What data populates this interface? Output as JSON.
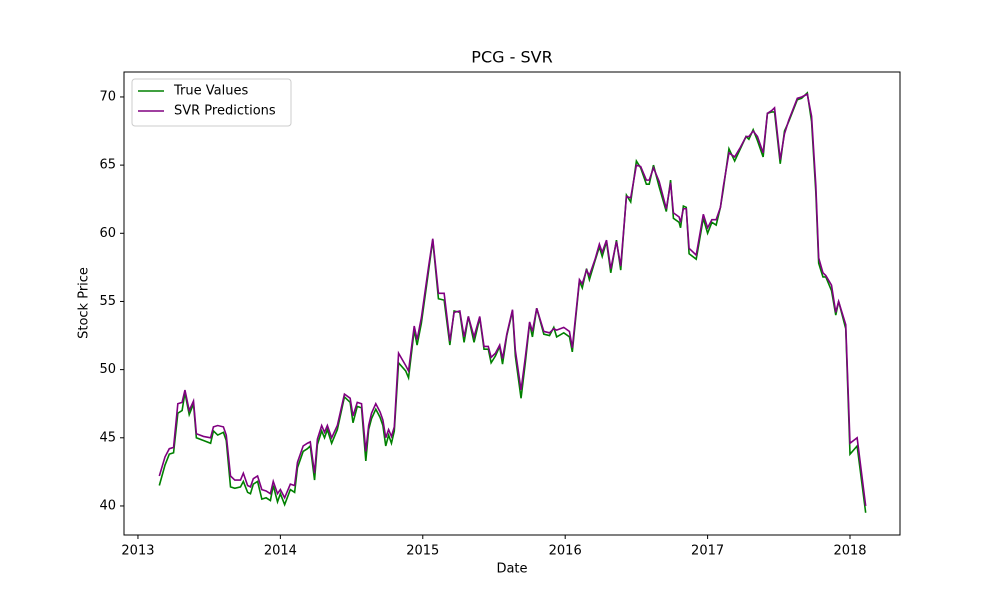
{
  "chart_data": {
    "type": "line",
    "title": "PCG - SVR",
    "xlabel": "Date",
    "ylabel": "Stock Price",
    "legend": "upper left",
    "xlim": [
      2012.902,
      2018.351
    ],
    "xticks": [
      2013,
      2014,
      2015,
      2016,
      2017,
      2018
    ],
    "ylim": [
      37.87,
      71.83
    ],
    "yticks": [
      40,
      45,
      50,
      55,
      60,
      65,
      70
    ],
    "x": [
      2013.15,
      2013.19,
      2013.22,
      2013.25,
      2013.28,
      2013.31,
      2013.33,
      2013.36,
      2013.39,
      2013.41,
      2013.46,
      2013.51,
      2013.53,
      2013.56,
      2013.6,
      2013.62,
      2013.65,
      2013.68,
      2013.72,
      2013.74,
      2013.77,
      2013.79,
      2013.81,
      2013.84,
      2013.87,
      2013.9,
      2013.93,
      2013.95,
      2013.98,
      2014.0,
      2014.03,
      2014.07,
      2014.1,
      2014.12,
      2014.16,
      2014.19,
      2014.21,
      2014.24,
      2014.26,
      2014.29,
      2014.31,
      2014.33,
      2014.36,
      2014.4,
      2014.45,
      2014.49,
      2014.51,
      2014.54,
      2014.57,
      2014.6,
      2014.62,
      2014.64,
      2014.67,
      2014.7,
      2014.72,
      2014.74,
      2014.76,
      2014.78,
      2014.8,
      2014.83,
      2014.88,
      2014.9,
      2014.94,
      2014.96,
      2014.99,
      2015.04,
      2015.07,
      2015.11,
      2015.15,
      2015.19,
      2015.22,
      2015.26,
      2015.29,
      2015.32,
      2015.36,
      2015.4,
      2015.43,
      2015.46,
      2015.48,
      2015.51,
      2015.54,
      2015.56,
      2015.59,
      2015.63,
      2015.65,
      2015.69,
      2015.72,
      2015.75,
      2015.77,
      2015.8,
      2015.85,
      2015.89,
      2015.92,
      2015.94,
      2015.99,
      2016.03,
      2016.05,
      2016.1,
      2016.12,
      2016.15,
      2016.17,
      2016.21,
      2016.24,
      2016.26,
      2016.29,
      2016.32,
      2016.36,
      2016.39,
      2016.43,
      2016.46,
      2016.5,
      2016.53,
      2016.57,
      2016.59,
      2016.62,
      2016.66,
      2016.71,
      2016.74,
      2016.76,
      2016.8,
      2016.81,
      2016.83,
      2016.85,
      2016.87,
      2016.92,
      2016.97,
      2017.0,
      2017.03,
      2017.06,
      2017.09,
      2017.11,
      2017.15,
      2017.19,
      2017.23,
      2017.27,
      2017.29,
      2017.32,
      2017.35,
      2017.39,
      2017.42,
      2017.45,
      2017.47,
      2017.51,
      2017.54,
      2017.57,
      2017.63,
      2017.66,
      2017.7,
      2017.73,
      2017.76,
      2017.78,
      2017.81,
      2017.83,
      2017.87,
      2017.9,
      2017.92,
      2017.97,
      2018.0,
      2018.05,
      2018.11
    ],
    "series": [
      {
        "name": "True Values",
        "color": "#008000",
        "values": [
          41.5,
          43,
          43.8,
          43.9,
          46.8,
          47.0,
          48.3,
          46.7,
          47.5,
          45.0,
          44.8,
          44.6,
          45.5,
          45.2,
          45.4,
          44.8,
          41.4,
          41.3,
          41.4,
          41.8,
          41.0,
          40.9,
          41.6,
          41.8,
          40.5,
          40.6,
          40.4,
          41.5,
          40.3,
          40.9,
          40.1,
          41.2,
          41.0,
          42.8,
          44.0,
          44.2,
          44.4,
          41.9,
          44.5,
          45.5,
          45.0,
          45.6,
          44.6,
          45.6,
          48.0,
          47.6,
          46.1,
          47.3,
          47.2,
          43.3,
          45.6,
          46.4,
          47.1,
          46.5,
          45.9,
          44.4,
          45.2,
          44.6,
          45.5,
          50.5,
          49.9,
          49.4,
          52.9,
          51.8,
          53.4,
          57.2,
          59.5,
          55.2,
          55.1,
          51.8,
          54.3,
          54.2,
          52.0,
          53.9,
          52.0,
          53.8,
          51.5,
          51.5,
          50.5,
          51.0,
          51.7,
          50.4,
          52.5,
          54.3,
          51.0,
          47.9,
          50.5,
          53.4,
          52.4,
          54.5,
          52.6,
          52.5,
          53.1,
          52.4,
          52.7,
          52.4,
          51.3,
          56.5,
          56.0,
          57.4,
          56.6,
          58.0,
          59.0,
          58.3,
          59.4,
          57.1,
          59.5,
          57.3,
          62.8,
          62.3,
          65.3,
          64.8,
          63.6,
          63.6,
          65.0,
          63.4,
          61.6,
          63.9,
          61.1,
          60.8,
          60.4,
          62.0,
          61.9,
          58.5,
          58.1,
          61.1,
          60.0,
          60.8,
          60.6,
          61.9,
          63.2,
          66.2,
          65.3,
          66.2,
          67.1,
          66.9,
          67.6,
          66.8,
          65.6,
          68.8,
          68.9,
          68.9,
          65.1,
          67.5,
          68.2,
          69.8,
          69.9,
          70.3,
          68.2,
          63.0,
          57.8,
          56.8,
          56.8,
          55.8,
          54.0,
          55.0,
          53.0,
          43.8,
          44.4,
          39.5
        ]
      },
      {
        "name": "SVR Predictions",
        "color": "#800080",
        "values": [
          42.2,
          43.6,
          44.2,
          44.3,
          47.5,
          47.6,
          48.5,
          47.0,
          47.7,
          45.3,
          45.1,
          45.0,
          45.8,
          45.9,
          45.8,
          45.2,
          42.2,
          41.9,
          41.9,
          42.4,
          41.5,
          41.4,
          42.0,
          42.2,
          41.2,
          41.1,
          40.9,
          41.8,
          40.9,
          41.2,
          40.6,
          41.6,
          41.5,
          43.2,
          44.4,
          44.6,
          44.7,
          42.4,
          44.9,
          45.9,
          45.4,
          45.9,
          45.0,
          45.9,
          48.2,
          47.9,
          46.6,
          47.6,
          47.5,
          44.0,
          45.9,
          46.8,
          47.5,
          46.9,
          46.3,
          45.0,
          45.6,
          45.1,
          45.8,
          51.2,
          50.3,
          49.9,
          53.2,
          52.2,
          53.8,
          57.5,
          59.6,
          55.6,
          55.6,
          52.1,
          54.2,
          54.3,
          52.4,
          53.9,
          52.4,
          53.9,
          51.7,
          51.7,
          50.9,
          51.2,
          51.8,
          50.8,
          52.6,
          54.4,
          51.4,
          48.5,
          50.9,
          53.5,
          52.8,
          54.5,
          52.8,
          52.7,
          53.0,
          52.9,
          53.1,
          52.8,
          51.6,
          56.6,
          56.3,
          57.3,
          56.9,
          58.1,
          59.2,
          58.6,
          59.5,
          57.4,
          59.4,
          57.6,
          62.7,
          62.6,
          65.0,
          64.9,
          63.9,
          63.9,
          64.8,
          63.8,
          61.8,
          63.7,
          61.5,
          61.2,
          60.8,
          61.8,
          61.8,
          58.9,
          58.4,
          61.4,
          60.4,
          61.0,
          61.0,
          61.9,
          63.4,
          65.9,
          65.6,
          66.3,
          67.1,
          67.1,
          67.5,
          67.1,
          65.9,
          68.8,
          69.0,
          69.2,
          65.4,
          67.3,
          68.3,
          69.9,
          70.0,
          70.2,
          68.6,
          63.5,
          58.2,
          57.1,
          56.9,
          56.2,
          54.2,
          55.0,
          53.3,
          44.6,
          45.0,
          40.0
        ]
      }
    ]
  }
}
